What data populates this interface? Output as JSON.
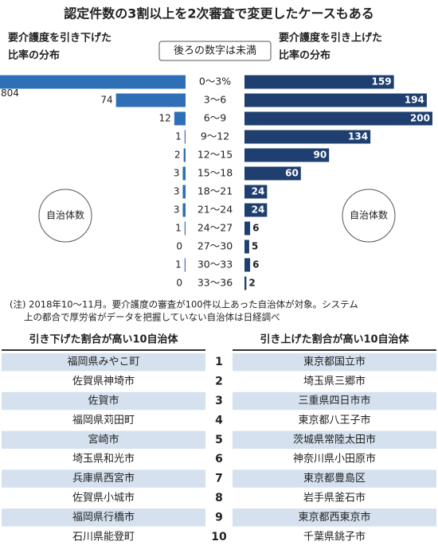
{
  "chart_data": {
    "type": "butterfly",
    "title": "認定件数の3割以上を2次審査で変更したケースもある",
    "center_note": "後ろの数字は未満",
    "categories": [
      "0〜3%",
      "3〜6",
      "6〜9",
      "9〜12",
      "12〜15",
      "15〜18",
      "18〜21",
      "21〜24",
      "24〜27",
      "27〜30",
      "30〜33",
      "33〜36"
    ],
    "series": [
      {
        "label": [
          "要介護度を引き下げた",
          "比率の分布"
        ],
        "unit_label": "自治体数",
        "color": "#2f6fb6",
        "side": "left",
        "values": [
          804,
          74,
          12,
          1,
          2,
          3,
          3,
          3,
          1,
          0,
          1,
          0
        ]
      },
      {
        "label": [
          "要介護度を引き上げた",
          "比率の分布"
        ],
        "unit_label": "自治体数",
        "color": "#1e3f6f",
        "side": "right",
        "values": [
          159,
          194,
          200,
          134,
          90,
          60,
          24,
          24,
          6,
          5,
          6,
          2
        ]
      }
    ],
    "note": [
      "(注) 2018年10〜11月。要介護度の審査が100件以上あった自治体が対象。システム",
      "上の都合で厚労省がデータを把握していない自治体は日経調べ"
    ]
  },
  "table": {
    "headers": [
      "引き下げた割合が高い10自治体",
      "引き上げた割合が高い10自治体"
    ],
    "rows": [
      {
        "left": "福岡県みやこ町",
        "rank": 1,
        "right": "東京都国立市"
      },
      {
        "left": "佐賀県神埼市",
        "rank": 2,
        "right": "埼玉県三郷市"
      },
      {
        "left": "佐賀市",
        "rank": 3,
        "right": "三重県四日市市"
      },
      {
        "left": "福岡県苅田町",
        "rank": 4,
        "right": "東京都八王子市"
      },
      {
        "left": "宮崎市",
        "rank": 5,
        "right": "茨城県常陸太田市"
      },
      {
        "left": "埼玉県和光市",
        "rank": 6,
        "right": "神奈川県小田原市"
      },
      {
        "left": "兵庫県西宮市",
        "rank": 7,
        "right": "東京都豊島区"
      },
      {
        "left": "佐賀県小城市",
        "rank": 8,
        "right": "岩手県釜石市"
      },
      {
        "left": "福岡県行橋市",
        "rank": 9,
        "right": "東京都西東京市"
      },
      {
        "left": "石川県能登町",
        "rank": 10,
        "right": "千葉県銚子市"
      }
    ]
  }
}
